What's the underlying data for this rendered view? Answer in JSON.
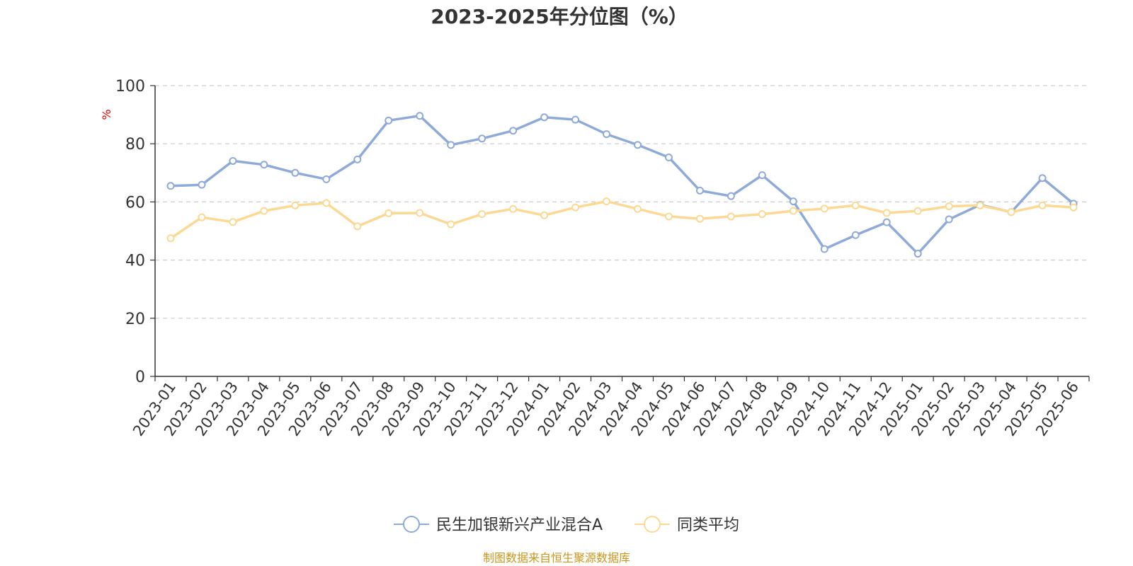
{
  "chart_data": {
    "type": "line",
    "title": "2023-2025年分位图（%）",
    "ylabel": "%",
    "ylim": [
      0,
      100
    ],
    "yticks": [
      0,
      20,
      40,
      60,
      80,
      100
    ],
    "grid": true,
    "legend_position": "bottom",
    "categories": [
      "2023-01",
      "2023-02",
      "2023-03",
      "2023-04",
      "2023-05",
      "2023-06",
      "2023-07",
      "2023-08",
      "2023-09",
      "2023-10",
      "2023-11",
      "2023-12",
      "2024-01",
      "2024-02",
      "2024-03",
      "2024-04",
      "2024-05",
      "2024-06",
      "2024-07",
      "2024-08",
      "2024-09",
      "2024-10",
      "2024-11",
      "2024-12",
      "2025-01",
      "2025-02",
      "2025-03",
      "2025-04",
      "2025-05",
      "2025-06"
    ],
    "series": [
      {
        "name": "民生加银新兴产业混合A",
        "color": "#8eaad8",
        "values": [
          65.5,
          65.9,
          74.1,
          72.8,
          70.0,
          67.8,
          74.6,
          88.0,
          89.6,
          79.6,
          81.8,
          84.5,
          89.1,
          88.3,
          83.3,
          79.6,
          75.3,
          63.9,
          62.0,
          69.2,
          60.2,
          43.8,
          48.6,
          53.0,
          42.2,
          54.0,
          59.0,
          56.5,
          68.2,
          59.4
        ]
      },
      {
        "name": "同类平均",
        "color": "#fcd993",
        "values": [
          47.5,
          54.7,
          53.1,
          56.9,
          58.8,
          59.6,
          51.6,
          56.1,
          56.2,
          52.3,
          55.8,
          57.6,
          55.4,
          58.1,
          60.2,
          57.6,
          55.0,
          54.2,
          55.0,
          55.8,
          56.9,
          57.7,
          58.8,
          56.2,
          56.9,
          58.5,
          58.8,
          56.5,
          58.8,
          58.1
        ]
      }
    ]
  },
  "source": "制图数据来自恒生聚源数据库"
}
